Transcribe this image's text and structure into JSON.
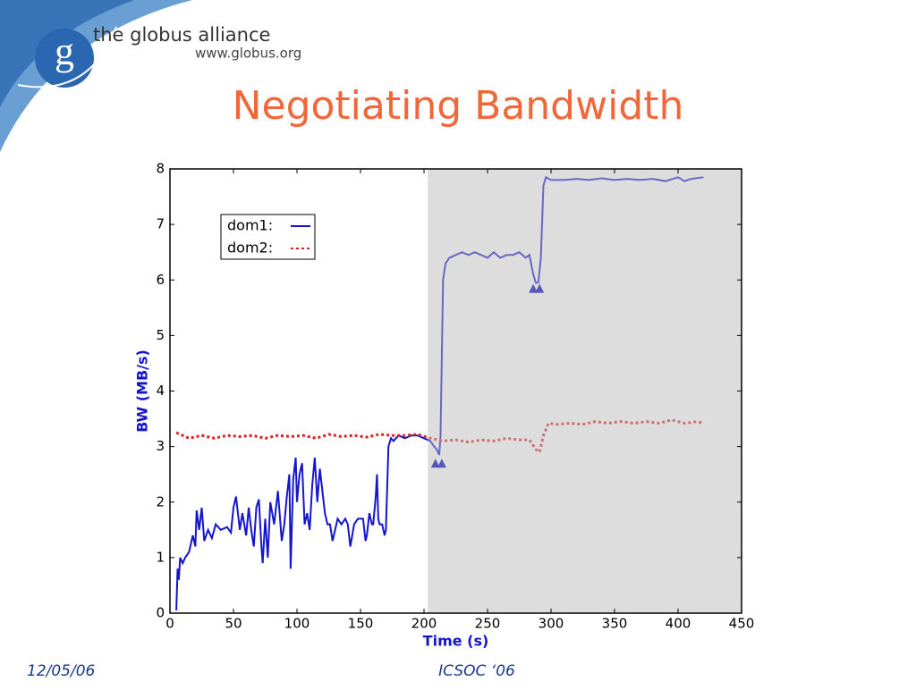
{
  "header": {
    "brand": "the globus alliance",
    "url": "www.globus.org",
    "logo": "g"
  },
  "title": "Negotiating Bandwidth",
  "footer": {
    "date": "12/05/06",
    "venue": "ICSOC ‘06"
  },
  "chart_data": {
    "type": "line",
    "xlabel": "Time (s)",
    "ylabel": "BW (MB/s)",
    "xlim": [
      0,
      450
    ],
    "xticks": [
      0,
      50,
      100,
      150,
      200,
      250,
      300,
      350,
      400,
      450
    ],
    "ylim": [
      0,
      8
    ],
    "yticks": [
      0,
      1,
      2,
      3,
      4,
      5,
      6,
      7,
      8
    ],
    "shaded_region": [
      203,
      450
    ],
    "shade_color": "#bbbbbb",
    "legend": "upper left",
    "series": [
      {
        "name": "dom1:",
        "color": "#1515cc",
        "style": "solid",
        "x": [
          5,
          6,
          7,
          8,
          10,
          12,
          15,
          18,
          20,
          21,
          23,
          25,
          27,
          30,
          33,
          36,
          40,
          45,
          48,
          50,
          52,
          55,
          57,
          60,
          62,
          64,
          66,
          68,
          70,
          72,
          73,
          75,
          77,
          79,
          82,
          85,
          88,
          90,
          92,
          94,
          95,
          97,
          99,
          100,
          102,
          104,
          106,
          108,
          110,
          112,
          114,
          116,
          118,
          120,
          122,
          124,
          126,
          128,
          130,
          132,
          135,
          138,
          140,
          142,
          145,
          148,
          150,
          152,
          154,
          155,
          157,
          159,
          160,
          162,
          163,
          164,
          165,
          167,
          169,
          170,
          172,
          174,
          176,
          180,
          185,
          190,
          195,
          200,
          205,
          208,
          210,
          212,
          213,
          215,
          217,
          220,
          225,
          230,
          235,
          240,
          245,
          250,
          255,
          260,
          265,
          270,
          275,
          280,
          283,
          286,
          288,
          290,
          292,
          294,
          296,
          300,
          310,
          320,
          330,
          340,
          350,
          360,
          370,
          380,
          390,
          400,
          405,
          410,
          420
        ],
        "values": [
          0.05,
          0.8,
          0.6,
          1.0,
          0.9,
          1.0,
          1.1,
          1.4,
          1.2,
          1.85,
          1.5,
          1.9,
          1.3,
          1.5,
          1.35,
          1.6,
          1.5,
          1.55,
          1.45,
          1.9,
          2.1,
          1.5,
          1.8,
          1.4,
          1.9,
          1.5,
          1.2,
          1.9,
          2.05,
          1.2,
          0.9,
          1.7,
          1.0,
          2.0,
          1.6,
          2.2,
          1.3,
          1.6,
          2.1,
          2.5,
          0.8,
          2.4,
          2.8,
          2.0,
          2.5,
          2.7,
          1.6,
          1.8,
          1.5,
          2.3,
          2.8,
          2.0,
          2.6,
          2.2,
          1.8,
          1.6,
          1.6,
          1.3,
          1.5,
          1.7,
          1.6,
          1.7,
          1.6,
          1.2,
          1.6,
          1.7,
          1.7,
          1.7,
          1.3,
          1.4,
          1.8,
          1.6,
          1.6,
          2.1,
          2.5,
          1.7,
          1.6,
          1.6,
          1.4,
          1.5,
          3.0,
          3.15,
          3.1,
          3.2,
          3.15,
          3.2,
          3.2,
          3.15,
          3.1,
          3.0,
          2.95,
          2.85,
          3.2,
          6.0,
          6.3,
          6.4,
          6.45,
          6.5,
          6.45,
          6.5,
          6.45,
          6.4,
          6.5,
          6.4,
          6.45,
          6.45,
          6.5,
          6.4,
          6.45,
          6.1,
          5.95,
          5.95,
          6.4,
          7.7,
          7.85,
          7.8,
          7.8,
          7.82,
          7.8,
          7.83,
          7.8,
          7.82,
          7.8,
          7.82,
          7.78,
          7.85,
          7.78,
          7.82,
          7.85
        ]
      },
      {
        "name": "dom2:",
        "color": "#dd2222",
        "style": "dotted",
        "x": [
          5,
          15,
          25,
          35,
          45,
          55,
          65,
          75,
          85,
          95,
          105,
          115,
          125,
          135,
          145,
          155,
          165,
          175,
          185,
          195,
          205,
          215,
          225,
          235,
          245,
          255,
          265,
          275,
          283,
          288,
          291,
          294,
          298,
          305,
          315,
          325,
          335,
          345,
          355,
          365,
          375,
          385,
          395,
          405,
          415,
          420
        ],
        "values": [
          3.25,
          3.15,
          3.2,
          3.15,
          3.2,
          3.18,
          3.2,
          3.15,
          3.2,
          3.18,
          3.2,
          3.15,
          3.22,
          3.18,
          3.2,
          3.17,
          3.22,
          3.2,
          3.2,
          3.22,
          3.15,
          3.1,
          3.12,
          3.08,
          3.12,
          3.1,
          3.15,
          3.12,
          3.12,
          2.95,
          2.9,
          3.2,
          3.42,
          3.4,
          3.42,
          3.4,
          3.45,
          3.42,
          3.45,
          3.42,
          3.45,
          3.42,
          3.48,
          3.42,
          3.45,
          3.42
        ]
      }
    ],
    "markers": {
      "color": "#5555bb",
      "x": [
        209,
        214,
        286,
        291
      ],
      "values": [
        2.7,
        2.7,
        5.85,
        5.85
      ]
    }
  }
}
